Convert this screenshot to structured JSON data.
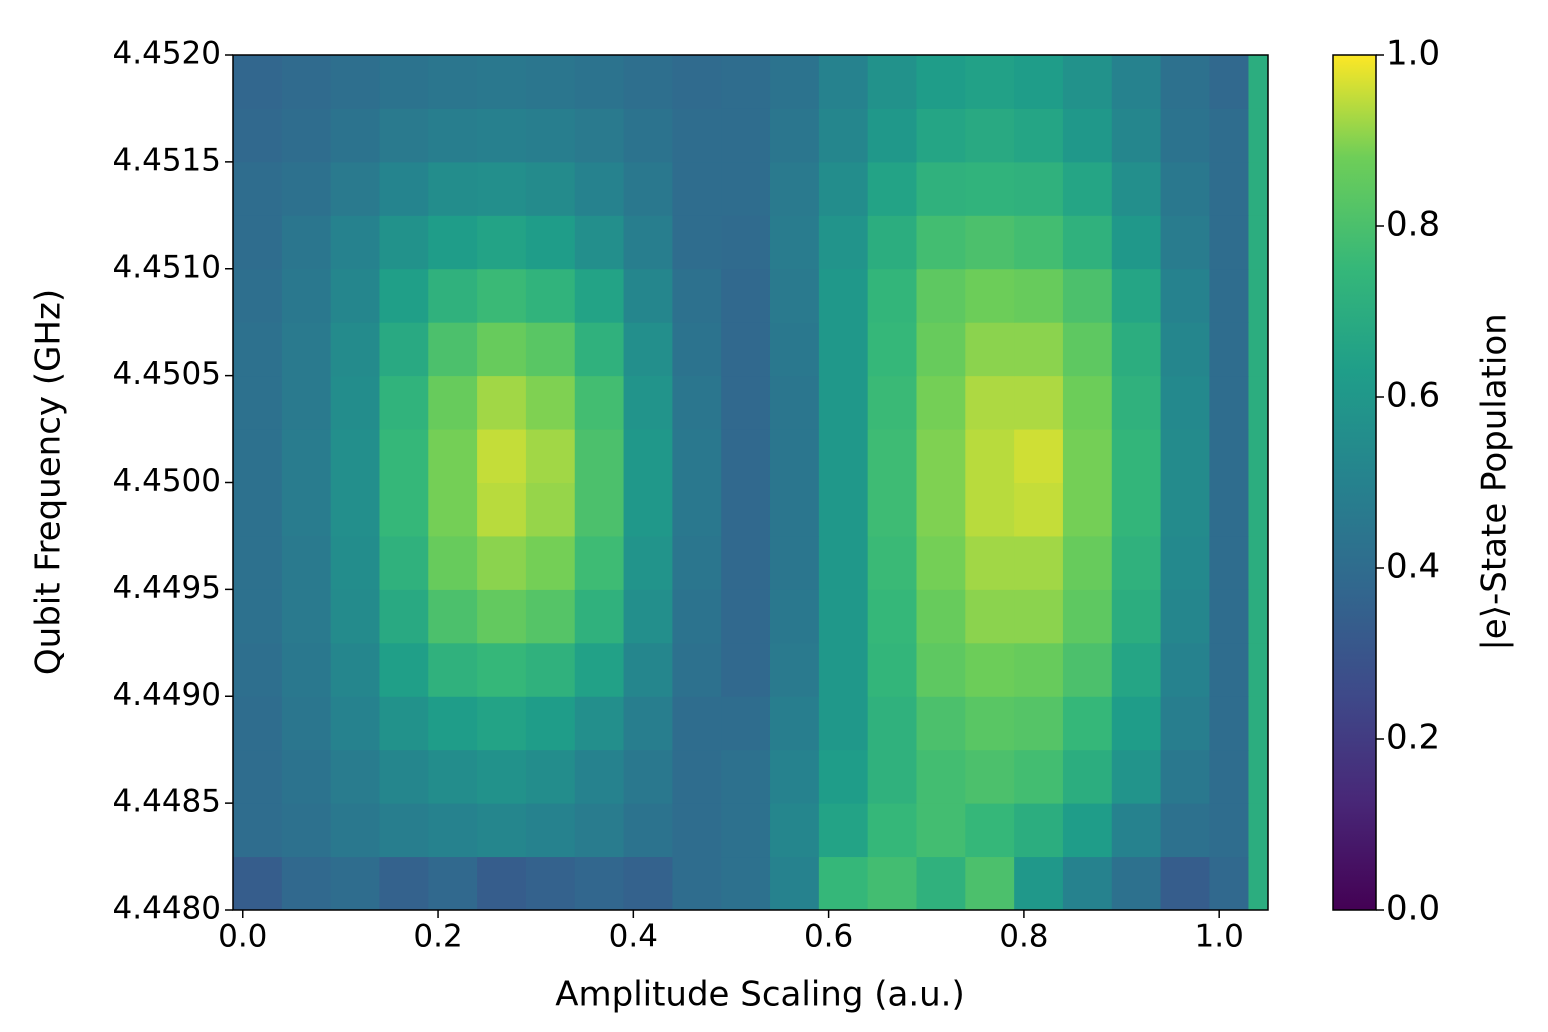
{
  "chart_data": {
    "type": "heatmap",
    "x_label": "Amplitude Scaling (a.u.)",
    "y_label": "Qubit Frequency (GHz)",
    "colormap": "viridis",
    "x_edges": [
      -0.01,
      0.04,
      0.09,
      0.14,
      0.19,
      0.24,
      0.29,
      0.34,
      0.39,
      0.44,
      0.49,
      0.54,
      0.59,
      0.64,
      0.69,
      0.74,
      0.79,
      0.84,
      0.89,
      0.94,
      0.99,
      1.03,
      1.05
    ],
    "y_edges": [
      4.448,
      4.44825,
      4.4485,
      4.44875,
      4.449,
      4.44925,
      4.4495,
      4.44975,
      4.45,
      4.45025,
      4.4505,
      4.45075,
      4.451,
      4.45125,
      4.4515,
      4.45175,
      4.452
    ],
    "values": [
      [
        0.33,
        0.38,
        0.4,
        0.35,
        0.38,
        0.33,
        0.35,
        0.37,
        0.35,
        0.4,
        0.42,
        0.5,
        0.75,
        0.78,
        0.72,
        0.8,
        0.6,
        0.5,
        0.42,
        0.33,
        0.38,
        0.7
      ],
      [
        0.4,
        0.42,
        0.45,
        0.48,
        0.5,
        0.52,
        0.5,
        0.47,
        0.43,
        0.4,
        0.42,
        0.52,
        0.65,
        0.75,
        0.78,
        0.75,
        0.7,
        0.62,
        0.5,
        0.42,
        0.4,
        0.7
      ],
      [
        0.4,
        0.43,
        0.47,
        0.52,
        0.55,
        0.57,
        0.55,
        0.5,
        0.45,
        0.4,
        0.42,
        0.5,
        0.62,
        0.72,
        0.78,
        0.8,
        0.78,
        0.7,
        0.58,
        0.45,
        0.4,
        0.7
      ],
      [
        0.4,
        0.44,
        0.5,
        0.57,
        0.62,
        0.65,
        0.62,
        0.56,
        0.48,
        0.4,
        0.4,
        0.48,
        0.6,
        0.72,
        0.8,
        0.83,
        0.82,
        0.75,
        0.62,
        0.48,
        0.4,
        0.7
      ],
      [
        0.41,
        0.45,
        0.52,
        0.63,
        0.72,
        0.75,
        0.72,
        0.64,
        0.52,
        0.42,
        0.38,
        0.46,
        0.6,
        0.74,
        0.84,
        0.87,
        0.86,
        0.8,
        0.66,
        0.5,
        0.4,
        0.7
      ],
      [
        0.42,
        0.46,
        0.54,
        0.68,
        0.8,
        0.85,
        0.82,
        0.72,
        0.56,
        0.43,
        0.38,
        0.45,
        0.6,
        0.75,
        0.86,
        0.9,
        0.9,
        0.84,
        0.7,
        0.52,
        0.4,
        0.7
      ],
      [
        0.42,
        0.46,
        0.55,
        0.72,
        0.86,
        0.9,
        0.88,
        0.77,
        0.58,
        0.44,
        0.38,
        0.44,
        0.6,
        0.76,
        0.88,
        0.92,
        0.92,
        0.86,
        0.72,
        0.53,
        0.4,
        0.7
      ],
      [
        0.42,
        0.47,
        0.56,
        0.75,
        0.88,
        0.94,
        0.91,
        0.8,
        0.6,
        0.45,
        0.38,
        0.44,
        0.6,
        0.77,
        0.89,
        0.94,
        0.95,
        0.88,
        0.74,
        0.54,
        0.4,
        0.7
      ],
      [
        0.42,
        0.47,
        0.56,
        0.75,
        0.88,
        0.95,
        0.92,
        0.8,
        0.6,
        0.45,
        0.38,
        0.44,
        0.6,
        0.77,
        0.89,
        0.94,
        0.96,
        0.88,
        0.74,
        0.54,
        0.4,
        0.7
      ],
      [
        0.42,
        0.46,
        0.55,
        0.73,
        0.86,
        0.92,
        0.89,
        0.78,
        0.58,
        0.44,
        0.38,
        0.44,
        0.6,
        0.76,
        0.88,
        0.93,
        0.93,
        0.87,
        0.72,
        0.53,
        0.4,
        0.7
      ],
      [
        0.42,
        0.46,
        0.54,
        0.68,
        0.8,
        0.86,
        0.83,
        0.72,
        0.56,
        0.43,
        0.38,
        0.45,
        0.6,
        0.75,
        0.86,
        0.9,
        0.9,
        0.84,
        0.7,
        0.52,
        0.4,
        0.7
      ],
      [
        0.41,
        0.45,
        0.52,
        0.63,
        0.72,
        0.76,
        0.73,
        0.65,
        0.52,
        0.42,
        0.38,
        0.46,
        0.6,
        0.74,
        0.84,
        0.87,
        0.86,
        0.8,
        0.66,
        0.5,
        0.4,
        0.7
      ],
      [
        0.4,
        0.44,
        0.5,
        0.57,
        0.62,
        0.65,
        0.62,
        0.56,
        0.48,
        0.4,
        0.39,
        0.47,
        0.58,
        0.7,
        0.78,
        0.8,
        0.78,
        0.72,
        0.6,
        0.47,
        0.4,
        0.7
      ],
      [
        0.4,
        0.42,
        0.46,
        0.51,
        0.55,
        0.56,
        0.54,
        0.5,
        0.45,
        0.4,
        0.4,
        0.46,
        0.55,
        0.65,
        0.72,
        0.73,
        0.72,
        0.66,
        0.56,
        0.45,
        0.4,
        0.7
      ],
      [
        0.38,
        0.4,
        0.43,
        0.46,
        0.48,
        0.49,
        0.48,
        0.46,
        0.43,
        0.4,
        0.4,
        0.44,
        0.52,
        0.6,
        0.66,
        0.68,
        0.66,
        0.6,
        0.52,
        0.43,
        0.4,
        0.7
      ],
      [
        0.37,
        0.39,
        0.41,
        0.43,
        0.44,
        0.45,
        0.44,
        0.43,
        0.41,
        0.39,
        0.4,
        0.43,
        0.5,
        0.57,
        0.62,
        0.64,
        0.62,
        0.57,
        0.5,
        0.42,
        0.38,
        0.7
      ]
    ],
    "xlim": [
      -0.01,
      1.05
    ],
    "ylim": [
      4.448,
      4.452
    ],
    "xticks": [
      {
        "value": 0,
        "label": "0.0"
      },
      {
        "value": 0.2,
        "label": "0.2"
      },
      {
        "value": 0.4,
        "label": "0.4"
      },
      {
        "value": 0.6,
        "label": "0.6"
      },
      {
        "value": 0.8,
        "label": "0.8"
      },
      {
        "value": 1,
        "label": "1.0"
      }
    ],
    "yticks": [
      {
        "value": 4.448,
        "label": "4.4480"
      },
      {
        "value": 4.4485,
        "label": "4.4485"
      },
      {
        "value": 4.449,
        "label": "4.4490"
      },
      {
        "value": 4.4495,
        "label": "4.4495"
      },
      {
        "value": 4.45,
        "label": "4.4500"
      },
      {
        "value": 4.4505,
        "label": "4.4505"
      },
      {
        "value": 4.451,
        "label": "4.4510"
      },
      {
        "value": 4.4515,
        "label": "4.4515"
      },
      {
        "value": 4.452,
        "label": "4.4520"
      }
    ],
    "colorbar": {
      "label": "|e⟩-State Population",
      "lim": [
        0,
        1
      ],
      "ticks": [
        {
          "value": 0,
          "label": "0.0"
        },
        {
          "value": 0.2,
          "label": "0.2"
        },
        {
          "value": 0.4,
          "label": "0.4"
        },
        {
          "value": 0.6,
          "label": "0.6"
        },
        {
          "value": 0.8,
          "label": "0.8"
        },
        {
          "value": 1,
          "label": "1.0"
        }
      ]
    }
  }
}
